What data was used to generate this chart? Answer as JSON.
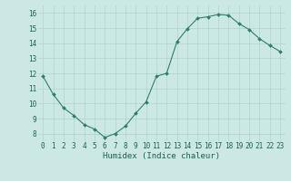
{
  "x": [
    0,
    1,
    2,
    3,
    4,
    5,
    6,
    7,
    8,
    9,
    10,
    11,
    12,
    13,
    14,
    15,
    16,
    17,
    18,
    19,
    20,
    21,
    22,
    23
  ],
  "y": [
    11.8,
    10.6,
    9.7,
    9.2,
    8.6,
    8.3,
    7.75,
    8.0,
    8.5,
    9.35,
    10.1,
    11.8,
    12.0,
    14.1,
    14.95,
    15.65,
    15.75,
    15.9,
    15.85,
    15.3,
    14.9,
    14.3,
    13.85,
    13.45
  ],
  "line_color": "#2e7d6e",
  "marker": "D",
  "marker_size": 2.0,
  "bg_color": "#cce8e5",
  "grid_color": "#aed4cf",
  "xlabel": "Humidex (Indice chaleur)",
  "xlim": [
    -0.5,
    23.5
  ],
  "ylim": [
    7.5,
    16.5
  ],
  "yticks": [
    8,
    9,
    10,
    11,
    12,
    13,
    14,
    15,
    16
  ],
  "xticks": [
    0,
    1,
    2,
    3,
    4,
    5,
    6,
    7,
    8,
    9,
    10,
    11,
    12,
    13,
    14,
    15,
    16,
    17,
    18,
    19,
    20,
    21,
    22,
    23
  ],
  "font_color": "#1a5f57",
  "tick_fontsize": 5.5,
  "xlabel_fontsize": 6.5
}
